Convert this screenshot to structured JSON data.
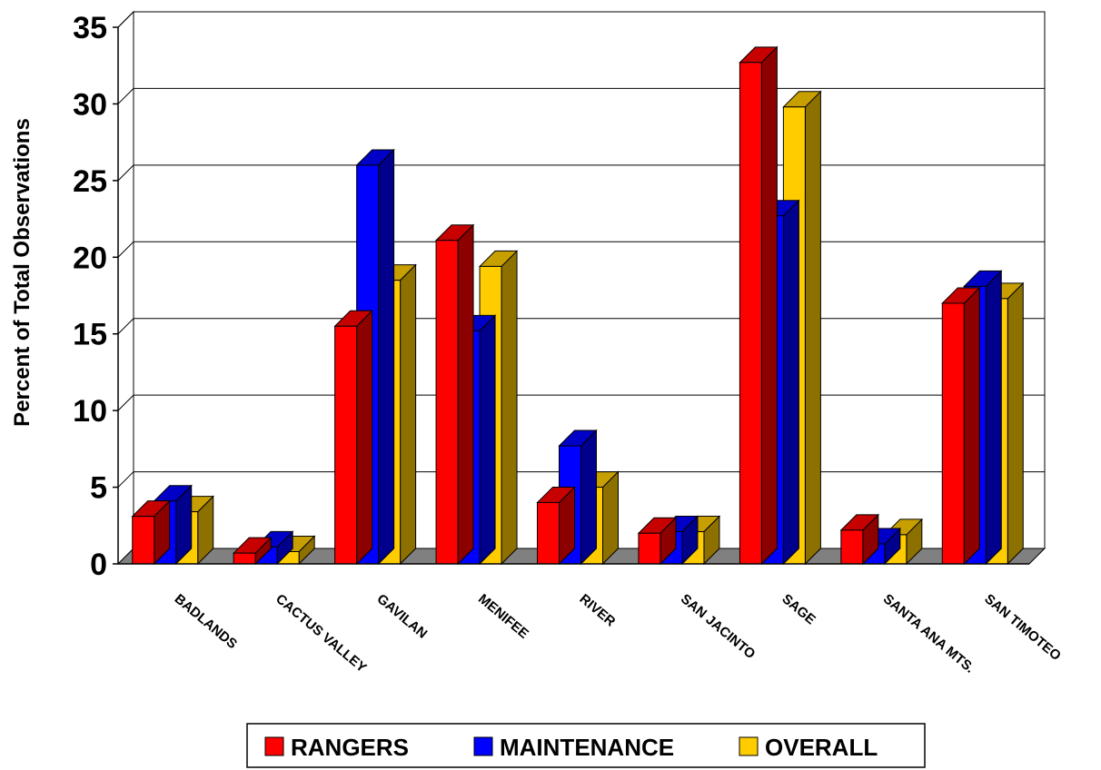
{
  "chart_data": {
    "type": "bar",
    "ylabel": "Percent of Total Observations",
    "xlabel": "",
    "ylim": [
      0,
      35
    ],
    "yticks": [
      0,
      5,
      10,
      15,
      20,
      25,
      30,
      35
    ],
    "grid": true,
    "legend_position": "bottom",
    "categories": [
      "BADLANDS",
      "CACTUS VALLEY",
      "GAVILAN",
      "MENIFEE",
      "RIVER",
      "SAN JACINTO",
      "SAGE",
      "SANTA ANA MTS.",
      "SAN TIMOTEO"
    ],
    "series": [
      {
        "name": "RANGERS",
        "color": "#ff0000",
        "values": [
          3.1,
          0.7,
          15.5,
          21.1,
          4.0,
          2.0,
          32.7,
          2.2,
          17.0
        ]
      },
      {
        "name": "MAINTENANCE",
        "color": "#0000ff",
        "values": [
          4.1,
          1.1,
          26.0,
          15.2,
          7.7,
          2.1,
          22.7,
          1.3,
          18.1
        ]
      },
      {
        "name": "OVERALL",
        "color": "#ffcc00",
        "values": [
          3.4,
          0.8,
          18.5,
          19.4,
          5.0,
          2.1,
          29.8,
          1.9,
          17.3
        ]
      }
    ]
  }
}
